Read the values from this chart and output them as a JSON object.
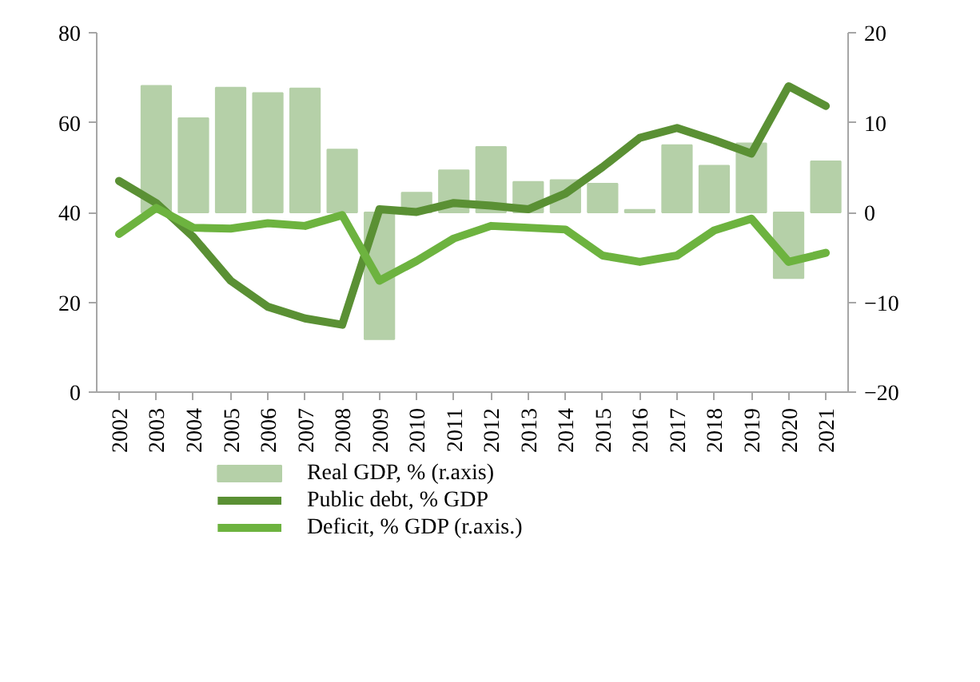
{
  "chart_data": {
    "type": "bar",
    "categories": [
      "2002",
      "2003",
      "2004",
      "2005",
      "2006",
      "2007",
      "2008",
      "2009",
      "2010",
      "2011",
      "2012",
      "2013",
      "2014",
      "2015",
      "2016",
      "2017",
      "2018",
      "2019",
      "2020",
      "2021"
    ],
    "series": [
      {
        "name": "Real GDP, % (r.axis)",
        "axis": "y2",
        "color": "#b5d0a8",
        "values": [
          null,
          14.1,
          10.5,
          13.9,
          13.3,
          13.8,
          7.0,
          -14.1,
          2.2,
          4.7,
          7.3,
          3.4,
          3.6,
          3.2,
          0.3,
          7.5,
          5.2,
          7.7,
          -7.3,
          5.7
        ]
      },
      {
        "name": "Public debt, % GDP",
        "type": "line",
        "color": "#5a9034",
        "values": [
          47.0,
          42.1,
          34.5,
          24.8,
          19.0,
          16.4,
          15.0,
          40.7,
          40.1,
          42.1,
          41.5,
          40.7,
          44.2,
          50.1,
          56.6,
          58.8,
          56.1,
          53.1,
          68.1,
          63.7
        ]
      },
      {
        "name": "Deficit, % GDP (r.axis.)",
        "type": "line",
        "axis": "y2",
        "color": "#6db33f",
        "values": [
          -2.4,
          0.5,
          -1.7,
          -1.8,
          -1.2,
          -1.5,
          -0.3,
          -7.6,
          -5.4,
          -2.9,
          -1.5,
          -1.7,
          -1.9,
          -4.8,
          -5.5,
          -4.8,
          -2.0,
          -0.7,
          -5.5,
          -4.5
        ]
      }
    ],
    "ylim": [
      0,
      80
    ],
    "yticks": [
      0,
      20,
      40,
      60,
      80
    ],
    "y2lim": [
      -20,
      20
    ],
    "y2ticks": [
      -20,
      -10,
      0,
      10,
      20
    ],
    "grid": false,
    "legend": "bottom",
    "line_style": "solid"
  }
}
